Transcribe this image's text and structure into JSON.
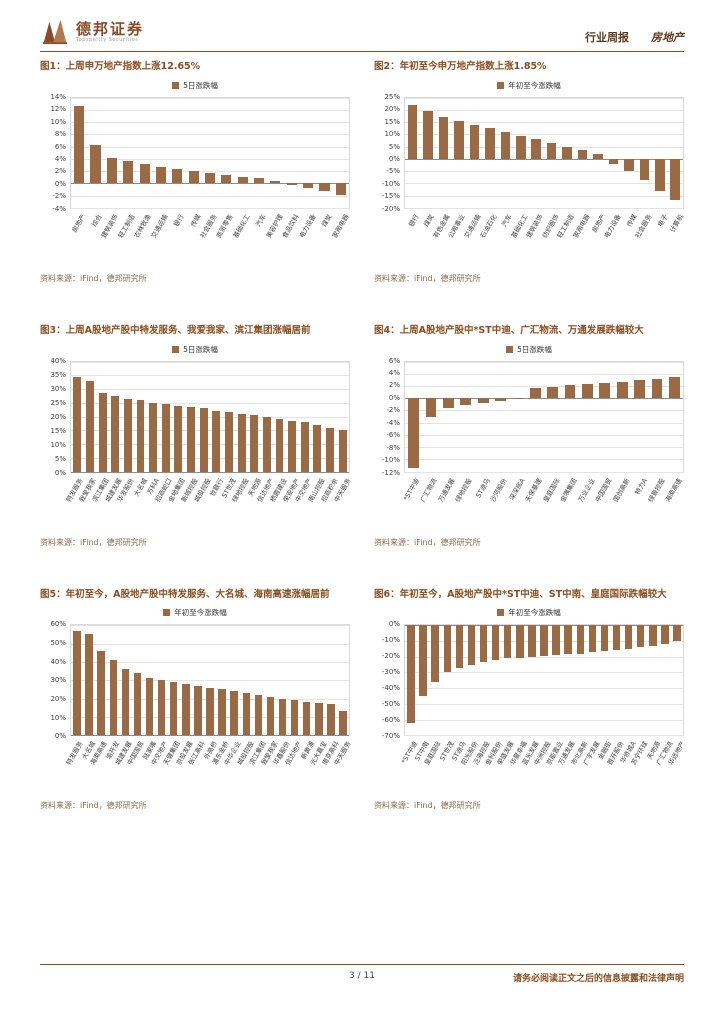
{
  "page": {
    "header": {
      "brand": "德邦证券",
      "brand_sub": "Topsperity Securities",
      "report_type": "行业周报",
      "industry": "房地产"
    },
    "source_note": "资料来源：iFind，德邦研究所",
    "footer": {
      "page_number": "3 / 11",
      "disclaimer": "请务必阅读正文之后的信息披露和法律声明"
    }
  },
  "colors": {
    "accent": "#8a4e20",
    "bar": "#9a6a45",
    "header_text": "#5b3a1c",
    "grid": "#e3e3e3",
    "zero_axis": "#8c8c8c",
    "source_text": "#8a6b4d"
  },
  "chart_data": [
    {
      "id": 1,
      "type": "bar",
      "title": "图1：上周申万地产指数上涨12.65%",
      "legend": "5日涨跌幅",
      "ylim": [
        -4,
        14
      ],
      "yticks": [
        14,
        12,
        10,
        8,
        6,
        4,
        2,
        0,
        -2,
        -4
      ],
      "categories": [
        "房地产",
        "综合",
        "建筑装饰",
        "轻工制造",
        "农林牧渔",
        "交通运输",
        "银行",
        "传媒",
        "社会服务",
        "商贸零售",
        "基础化工",
        "汽车",
        "美容护理",
        "食品饮料",
        "电力设备",
        "煤炭",
        "家用电器"
      ],
      "values": [
        12.65,
        6.3,
        4.2,
        3.6,
        3.1,
        2.7,
        2.3,
        2.0,
        1.7,
        1.4,
        1.1,
        0.8,
        0.4,
        -0.3,
        -0.8,
        -1.3,
        -1.9
      ]
    },
    {
      "id": 2,
      "type": "bar",
      "title": "图2：年初至今申万地产指数上涨1.85%",
      "legend": "年初至今涨跌幅",
      "ylim": [
        -20,
        25
      ],
      "yticks": [
        25,
        20,
        15,
        10,
        5,
        0,
        -5,
        -10,
        -15,
        -20
      ],
      "categories": [
        "银行",
        "煤炭",
        "有色金属",
        "公用事业",
        "交通运输",
        "石油石化",
        "汽车",
        "基础化工",
        "建筑装饰",
        "纺织服饰",
        "轻工制造",
        "家用电器",
        "房地产",
        "电力设备",
        "传媒",
        "社会服务",
        "电子",
        "计算机"
      ],
      "values": [
        22.0,
        19.5,
        17.0,
        15.5,
        14.0,
        12.5,
        11.0,
        9.5,
        8.0,
        6.5,
        5.0,
        3.5,
        1.85,
        -2.0,
        -5.0,
        -8.5,
        -13.0,
        -17.0
      ]
    },
    {
      "id": 3,
      "type": "bar",
      "title": "图3：上周A股地产股中特发服务、我爱我家、滨江集团涨幅居前",
      "legend": "5日涨跌幅",
      "ylim": [
        0,
        40
      ],
      "yticks": [
        40,
        35,
        30,
        25,
        20,
        15,
        10,
        5,
        0
      ],
      "categories": [
        "特发服务",
        "我爱我家",
        "滨江集团",
        "城建发展",
        "华发股份",
        "大名城",
        "万科A",
        "招商蛇口",
        "金地集团",
        "新城控股",
        "城投控股",
        "世联行",
        "ST世茂",
        "绿地控股",
        "天地源",
        "信达地产",
        "栖霞建设",
        "荣安地产",
        "中交地产",
        "南山控股",
        "招商积余",
        "中天服务"
      ],
      "values": [
        34.5,
        33.0,
        28.5,
        27.5,
        26.5,
        26.0,
        25.0,
        24.5,
        24.0,
        23.5,
        23.0,
        22.0,
        21.5,
        21.0,
        20.5,
        20.0,
        19.0,
        18.5,
        18.0,
        17.0,
        16.0,
        15.0
      ]
    },
    {
      "id": 4,
      "type": "bar",
      "title": "图4：上周A股地产股中*ST中迪、广汇物流、万通发展跌幅较大",
      "legend": "5日涨跌幅",
      "ylim": [
        -12,
        6
      ],
      "yticks": [
        6,
        4,
        2,
        0,
        -2,
        -4,
        -6,
        -8,
        -10,
        -12
      ],
      "categories": [
        "*ST中迪",
        "广汇物流",
        "万通发展",
        "绿地控股",
        "ST迪马",
        "沙河股份",
        "深深房A",
        "天保基建",
        "皇庭国际",
        "金隅集团",
        "万业企业",
        "中国国贸",
        "国创高新",
        "特力A",
        "绿景控股",
        "海南高速"
      ],
      "values": [
        -11.5,
        -3.0,
        -1.6,
        -1.1,
        -0.8,
        -0.5,
        -0.2,
        1.6,
        1.9,
        2.1,
        2.3,
        2.5,
        2.7,
        2.9,
        3.1,
        3.4
      ]
    },
    {
      "id": 5,
      "type": "bar",
      "title": "图5：年初至今，A股地产股中特发服务、大名城、海南高速涨幅居前",
      "legend": "年初至今涨跌幅",
      "ylim": [
        0,
        60
      ],
      "yticks": [
        60,
        50,
        40,
        30,
        20,
        10,
        0
      ],
      "categories": [
        "特发服务",
        "大名城",
        "海南高速",
        "渝开发",
        "城建发展",
        "中国国贸",
        "陆家嘴",
        "中交地产",
        "天健集团",
        "京投发展",
        "张江高科",
        "外高桥",
        "浦东金桥",
        "中华企业",
        "城投控股",
        "滨江集团",
        "我爱我家",
        "华鑫股份",
        "信达地产",
        "新黄浦",
        "光大嘉宝",
        "南京高科",
        "中天服务"
      ],
      "values": [
        57,
        55,
        46,
        41,
        36,
        34,
        31.5,
        30,
        29,
        28,
        27,
        26,
        25,
        24,
        23,
        22,
        21,
        20,
        19,
        18,
        17.5,
        17,
        13
      ]
    },
    {
      "id": 6,
      "type": "bar",
      "title": "图6：年初至今，A股地产股中*ST中迪、ST中南、皇庭国际跌幅较大",
      "legend": "年初至今涨跌幅",
      "ylim": [
        -70,
        0
      ],
      "yticks": [
        0,
        -10,
        -20,
        -30,
        -40,
        -50,
        -60,
        -70
      ],
      "categories": [
        "*ST中迪",
        "ST中南",
        "皇庭国际",
        "ST世茂",
        "ST迪马",
        "阳光股份",
        "泛海控股",
        "金科股份",
        "荣盛发展",
        "华夏幸福",
        "蓝光发展",
        "中洲控股",
        "京能置业",
        "万通发展",
        "市北高新",
        "广宇发展",
        "金融街",
        "首开股份",
        "华侨城A",
        "苏宁环球",
        "天地源",
        "广汇物流",
        "华远地产"
      ],
      "values": [
        -62,
        -45,
        -36,
        -30,
        -27,
        -25,
        -23.5,
        -22,
        -21,
        -20.5,
        -20,
        -19.5,
        -19,
        -18.5,
        -18,
        -17,
        -16.5,
        -16,
        -15,
        -14,
        -13,
        -12,
        -10
      ]
    }
  ]
}
